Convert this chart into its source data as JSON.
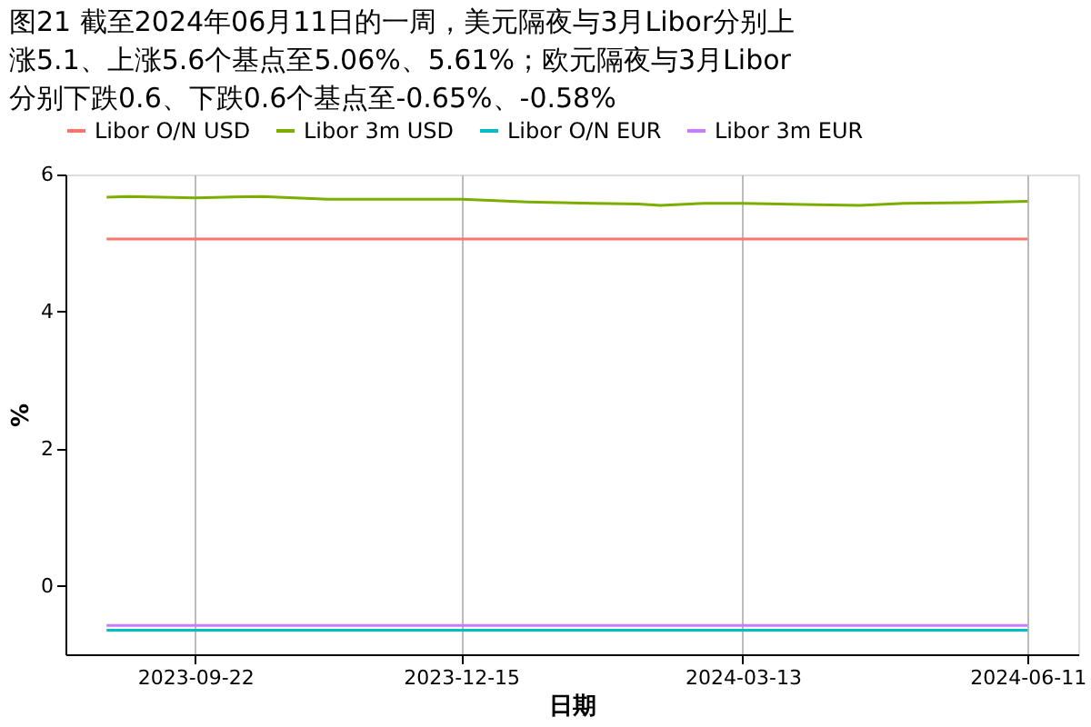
{
  "chart_data": {
    "type": "line",
    "title": "图21  截至2024年06月11日的一周，美元隔夜与3月Libor分别上涨5.1、上涨5.6个基点至5.06%、5.61%；欧元隔夜与3月Libor分别下跌0.6、下跌0.6个基点至-0.65%、-0.58%",
    "xlabel": "日期",
    "ylabel": "%",
    "series": [
      {
        "name": "Libor O/N USD",
        "color": "#f8766d",
        "x": [
          "2023-08-25",
          "2023-12-15",
          "2024-06-11"
        ],
        "values": [
          5.06,
          5.06,
          5.06
        ]
      },
      {
        "name": "Libor 3m USD",
        "color": "#7cae00",
        "x": [
          "2023-08-25",
          "2023-09-01",
          "2023-09-22",
          "2023-10-13",
          "2023-11-03",
          "2023-12-01",
          "2023-12-15",
          "2024-01-05",
          "2024-01-26",
          "2024-02-09",
          "2024-02-16",
          "2024-03-01",
          "2024-03-13",
          "2024-04-05",
          "2024-04-19",
          "2024-05-03",
          "2024-05-24",
          "2024-06-11"
        ],
        "values": [
          5.67,
          5.68,
          5.66,
          5.68,
          5.64,
          5.64,
          5.64,
          5.6,
          5.58,
          5.57,
          5.55,
          5.58,
          5.58,
          5.56,
          5.55,
          5.58,
          5.59,
          5.61
        ]
      },
      {
        "name": "Libor O/N EUR",
        "color": "#00bfc4",
        "x": [
          "2023-08-25",
          "2023-12-15",
          "2024-06-11"
        ],
        "values": [
          -0.65,
          -0.65,
          -0.65
        ]
      },
      {
        "name": "Libor 3m EUR",
        "color": "#c77cff",
        "x": [
          "2023-08-25",
          "2023-12-15",
          "2024-06-11"
        ],
        "values": [
          -0.58,
          -0.58,
          -0.58
        ]
      }
    ],
    "xlim": [
      "2023-08-12",
      "2024-06-27"
    ],
    "xticks": [
      "2023-09-22",
      "2023-12-15",
      "2024-03-13",
      "2024-06-11"
    ],
    "ylim": [
      -1,
      6
    ],
    "yticks": [
      0,
      2,
      4,
      6
    ],
    "grid": "x",
    "legend": "top",
    "line_style": "solid",
    "marker": "none"
  }
}
